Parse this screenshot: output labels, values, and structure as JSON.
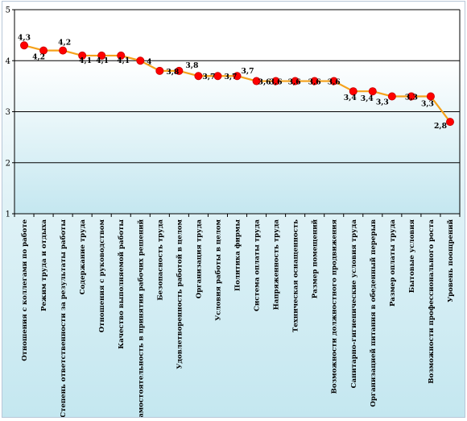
{
  "chart_data": {
    "type": "line",
    "title": "",
    "xlabel": "",
    "ylabel": "",
    "ylim": [
      1,
      5
    ],
    "yticks": [
      1,
      2,
      3,
      4,
      5
    ],
    "grid": "horizontal",
    "legend": "none",
    "colors": {
      "line": "#f5a21b",
      "marker": "#ff0000",
      "marker_edge": "#c40000",
      "grid": "#000000",
      "plot_top": "#ffffff",
      "plot_bottom": "#c4e7f0"
    },
    "categories": [
      "Отношения с коллегами по работе",
      "Режим труда и отдыха",
      "Степень ответственности за результаты работы",
      "Содержание труда",
      "Отношения с руководством",
      "Качество выполняемой работы",
      "Самостоятельность в принятии рабочих решений",
      "Безопасность труда",
      "Удовлетворенность работой в целом",
      "Организация труда",
      "Условия работы в целом",
      "Политика фирмы",
      "Система оплаты труда",
      "Напряженность труда",
      "Техническая оснащенность",
      "Размер помещений",
      "Возможности должностного продвижения",
      "Санитарно-гигиенические условия труда",
      "Организацией питания в обеденный перерыв",
      "Размер оплаты труда",
      "Бытовые условия",
      "Возможности профессионального роста",
      "Уровень поощрений"
    ],
    "values": [
      4.3,
      4.2,
      4.2,
      4.1,
      4.1,
      4.1,
      4.0,
      3.8,
      3.8,
      3.7,
      3.7,
      3.7,
      3.6,
      3.6,
      3.6,
      3.6,
      3.6,
      3.4,
      3.4,
      3.3,
      3.3,
      3.3,
      2.8
    ],
    "data_labels": [
      "4,3",
      "4,2",
      "4,2",
      "4,1",
      "4,1",
      "4,1",
      "4",
      "3,8",
      "3,8",
      "3,7",
      "3,7",
      "3,7",
      "3,6",
      "3,6",
      "3,6",
      "3,6",
      "3,6",
      "3,4",
      "3,4",
      "3,3",
      "3,3",
      "3,3",
      "2,8"
    ],
    "ytick_labels": [
      "1",
      "2",
      "3",
      "4",
      "5"
    ]
  }
}
